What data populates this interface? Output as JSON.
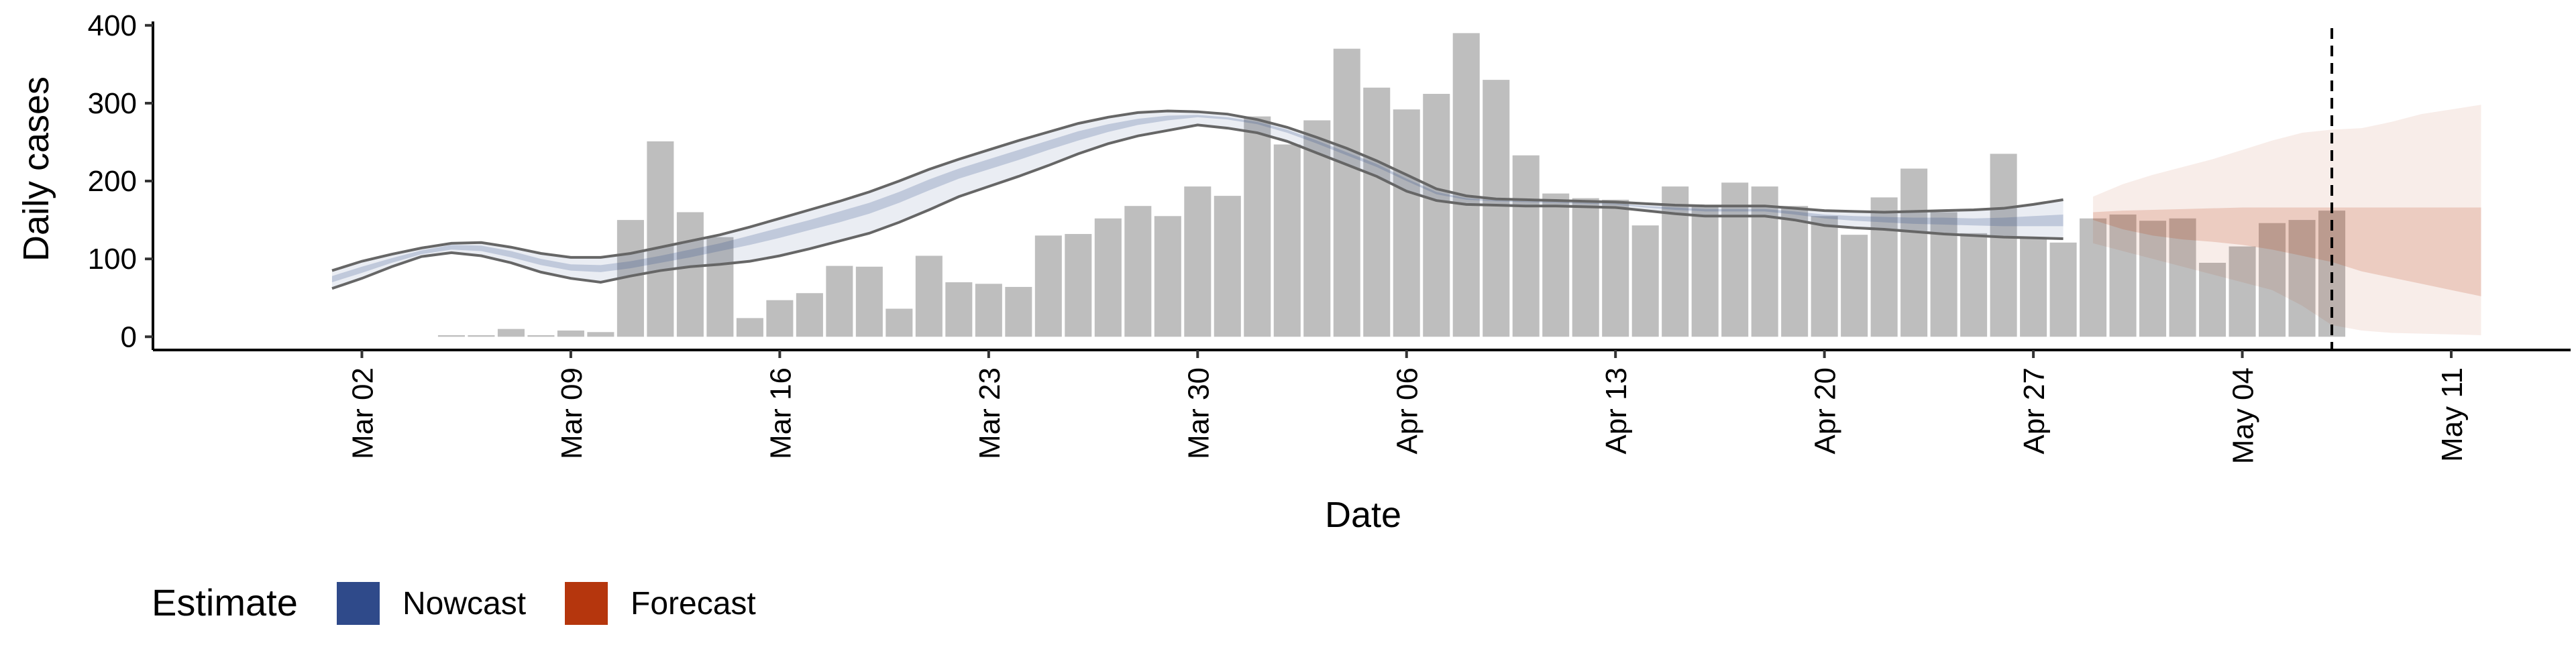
{
  "chart_data": {
    "type": "bar",
    "xlabel": "Date",
    "ylabel": "Daily cases",
    "ylim": [
      -17,
      405
    ],
    "xlim": [
      "2020-02-24",
      "2020-05-15"
    ],
    "yticks": [
      0,
      100,
      200,
      300,
      400
    ],
    "xticks": [
      {
        "date": "2020-03-02",
        "label": "Mar 02"
      },
      {
        "date": "2020-03-09",
        "label": "Mar 09"
      },
      {
        "date": "2020-03-16",
        "label": "Mar 16"
      },
      {
        "date": "2020-03-23",
        "label": "Mar 23"
      },
      {
        "date": "2020-03-30",
        "label": "Mar 30"
      },
      {
        "date": "2020-04-06",
        "label": "Apr 06"
      },
      {
        "date": "2020-04-13",
        "label": "Apr 13"
      },
      {
        "date": "2020-04-20",
        "label": "Apr 20"
      },
      {
        "date": "2020-04-27",
        "label": "Apr 27"
      },
      {
        "date": "2020-05-04",
        "label": "May 04"
      },
      {
        "date": "2020-05-11",
        "label": "May 11"
      }
    ],
    "legend": {
      "title": "Estimate",
      "position": "bottom-left",
      "items": [
        {
          "label": "Nowcast",
          "color": "#2f4a8a"
        },
        {
          "label": "Forecast",
          "color": "#b5360d"
        }
      ]
    },
    "reference_line": {
      "date": "2020-05-07",
      "style": "dashed"
    },
    "grid": false,
    "bars": {
      "color": "#bebebe",
      "dates": [
        "2020-03-01",
        "2020-03-02",
        "2020-03-03",
        "2020-03-04",
        "2020-03-05",
        "2020-03-06",
        "2020-03-07",
        "2020-03-08",
        "2020-03-09",
        "2020-03-10",
        "2020-03-11",
        "2020-03-12",
        "2020-03-13",
        "2020-03-14",
        "2020-03-15",
        "2020-03-16",
        "2020-03-17",
        "2020-03-18",
        "2020-03-19",
        "2020-03-20",
        "2020-03-21",
        "2020-03-22",
        "2020-03-23",
        "2020-03-24",
        "2020-03-25",
        "2020-03-26",
        "2020-03-27",
        "2020-03-28",
        "2020-03-29",
        "2020-03-30",
        "2020-03-31",
        "2020-04-01",
        "2020-04-02",
        "2020-04-03",
        "2020-04-04",
        "2020-04-05",
        "2020-04-06",
        "2020-04-07",
        "2020-04-08",
        "2020-04-09",
        "2020-04-10",
        "2020-04-11",
        "2020-04-12",
        "2020-04-13",
        "2020-04-14",
        "2020-04-15",
        "2020-04-16",
        "2020-04-17",
        "2020-04-18",
        "2020-04-19",
        "2020-04-20",
        "2020-04-21",
        "2020-04-22",
        "2020-04-23",
        "2020-04-24",
        "2020-04-25",
        "2020-04-26",
        "2020-04-27",
        "2020-04-28",
        "2020-04-29",
        "2020-04-30",
        "2020-05-01",
        "2020-05-02",
        "2020-05-03",
        "2020-05-04",
        "2020-05-05",
        "2020-05-06",
        "2020-05-07"
      ],
      "values": [
        0,
        0,
        0,
        0,
        2,
        2,
        10,
        2,
        8,
        6,
        150,
        251,
        160,
        128,
        24,
        47,
        56,
        91,
        90,
        36,
        104,
        70,
        68,
        64,
        130,
        132,
        152,
        168,
        155,
        193,
        181,
        283,
        247,
        278,
        370,
        320,
        292,
        312,
        390,
        330,
        233,
        184,
        178,
        176,
        143,
        193,
        168,
        198,
        193,
        168,
        155,
        131,
        179,
        216,
        160,
        133,
        235,
        128,
        121,
        152,
        157,
        149,
        152,
        95,
        116,
        146,
        150,
        162
      ]
    },
    "nowcast": {
      "label": "Nowcast",
      "color": "#2f4a8a",
      "dates": [
        "2020-03-01",
        "2020-03-02",
        "2020-03-03",
        "2020-03-04",
        "2020-03-05",
        "2020-03-06",
        "2020-03-07",
        "2020-03-08",
        "2020-03-09",
        "2020-03-10",
        "2020-03-11",
        "2020-03-12",
        "2020-03-13",
        "2020-03-14",
        "2020-03-15",
        "2020-03-16",
        "2020-03-17",
        "2020-03-18",
        "2020-03-19",
        "2020-03-20",
        "2020-03-21",
        "2020-03-22",
        "2020-03-23",
        "2020-03-24",
        "2020-03-25",
        "2020-03-26",
        "2020-03-27",
        "2020-03-28",
        "2020-03-29",
        "2020-03-30",
        "2020-03-31",
        "2020-04-01",
        "2020-04-02",
        "2020-04-03",
        "2020-04-04",
        "2020-04-05",
        "2020-04-06",
        "2020-04-07",
        "2020-04-08",
        "2020-04-09",
        "2020-04-10",
        "2020-04-11",
        "2020-04-12",
        "2020-04-13",
        "2020-04-14",
        "2020-04-15",
        "2020-04-16",
        "2020-04-17",
        "2020-04-18",
        "2020-04-19",
        "2020-04-20",
        "2020-04-21",
        "2020-04-22",
        "2020-04-23",
        "2020-04-24",
        "2020-04-25",
        "2020-04-26",
        "2020-04-27",
        "2020-04-28"
      ],
      "lower90": [
        62,
        75,
        90,
        103,
        108,
        104,
        95,
        83,
        75,
        70,
        78,
        85,
        90,
        93,
        97,
        104,
        113,
        123,
        133,
        147,
        163,
        180,
        193,
        206,
        220,
        235,
        248,
        258,
        265,
        272,
        268,
        262,
        251,
        236,
        221,
        206,
        187,
        175,
        170,
        169,
        168,
        168,
        167,
        166,
        162,
        158,
        155,
        155,
        155,
        150,
        143,
        140,
        138,
        135,
        132,
        130,
        128,
        127,
        126
      ],
      "lower50": [
        70,
        82,
        95,
        106,
        112,
        110,
        102,
        92,
        85,
        83,
        88,
        95,
        102,
        110,
        118,
        127,
        137,
        147,
        158,
        172,
        188,
        203,
        215,
        227,
        240,
        252,
        263,
        272,
        278,
        282,
        279,
        273,
        262,
        248,
        233,
        218,
        200,
        183,
        176,
        174,
        173,
        172,
        171,
        170,
        166,
        163,
        161,
        161,
        161,
        157,
        152,
        149,
        147,
        145,
        144,
        143,
        142,
        142,
        142
      ],
      "upper50": [
        78,
        90,
        101,
        111,
        118,
        117,
        110,
        100,
        93,
        92,
        97,
        104,
        112,
        120,
        130,
        140,
        150,
        161,
        172,
        186,
        202,
        216,
        228,
        240,
        252,
        264,
        273,
        280,
        284,
        285,
        282,
        276,
        266,
        252,
        237,
        222,
        203,
        186,
        178,
        175,
        174,
        173,
        172,
        171,
        168,
        166,
        164,
        164,
        164,
        161,
        157,
        155,
        154,
        153,
        153,
        152,
        153,
        155,
        157
      ],
      "upper90": [
        85,
        97,
        106,
        114,
        120,
        121,
        115,
        107,
        102,
        102,
        107,
        115,
        123,
        131,
        141,
        152,
        163,
        174,
        186,
        200,
        215,
        228,
        240,
        252,
        263,
        274,
        282,
        288,
        290,
        289,
        286,
        279,
        269,
        256,
        242,
        226,
        208,
        190,
        181,
        177,
        176,
        175,
        174,
        173,
        171,
        169,
        168,
        168,
        168,
        165,
        162,
        161,
        160,
        161,
        162,
        163,
        165,
        170,
        176
      ]
    },
    "forecast": {
      "label": "Forecast",
      "color": "#b5360d",
      "dates": [
        "2020-04-29",
        "2020-04-30",
        "2020-05-01",
        "2020-05-02",
        "2020-05-03",
        "2020-05-04",
        "2020-05-05",
        "2020-05-06",
        "2020-05-07",
        "2020-05-08",
        "2020-05-09",
        "2020-05-10",
        "2020-05-11",
        "2020-05-12"
      ],
      "lower90": [
        120,
        110,
        100,
        90,
        80,
        70,
        60,
        40,
        15,
        8,
        5,
        4,
        3,
        2
      ],
      "lower50": [
        150,
        138,
        130,
        125,
        122,
        118,
        112,
        104,
        96,
        84,
        76,
        68,
        60,
        52
      ],
      "upper50": [
        160,
        162,
        163,
        164,
        165,
        166,
        166,
        166,
        166,
        166,
        166,
        166,
        166,
        166
      ],
      "upper90": [
        180,
        196,
        208,
        218,
        228,
        240,
        252,
        262,
        266,
        268,
        276,
        286,
        292,
        298
      ]
    }
  }
}
